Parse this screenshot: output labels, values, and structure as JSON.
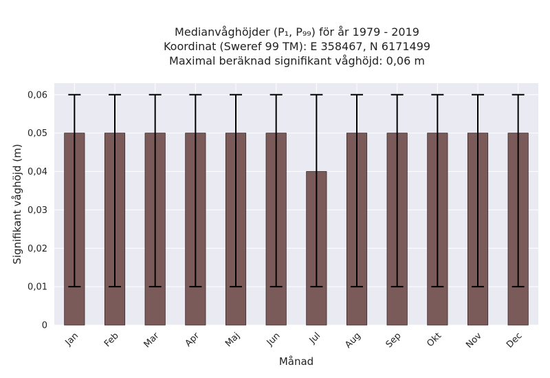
{
  "chart_data": {
    "type": "bar",
    "title_lines": [
      "Medianvåghöjder (P₁, P₉₉) för år 1979 - 2019",
      "Koordinat (Sweref 99 TM): E 358467, N 6171499",
      "Maximal beräknad signifikant våghöjd: 0,06 m"
    ],
    "xlabel": "Månad",
    "ylabel": "Signifikant våghöjd (m)",
    "categories": [
      "Jan",
      "Feb",
      "Mar",
      "Apr",
      "Maj",
      "Jun",
      "Jul",
      "Aug",
      "Sep",
      "Okt",
      "Nov",
      "Dec"
    ],
    "values": [
      0.05,
      0.05,
      0.05,
      0.05,
      0.05,
      0.05,
      0.04,
      0.05,
      0.05,
      0.05,
      0.05,
      0.05
    ],
    "err_low": [
      0.01,
      0.01,
      0.01,
      0.01,
      0.01,
      0.01,
      0.01,
      0.01,
      0.01,
      0.01,
      0.01,
      0.01
    ],
    "err_high": [
      0.06,
      0.06,
      0.06,
      0.06,
      0.06,
      0.06,
      0.06,
      0.06,
      0.06,
      0.06,
      0.06,
      0.06
    ],
    "ylim": [
      0,
      0.063
    ],
    "yticks": [
      0,
      0.01,
      0.02,
      0.03,
      0.04,
      0.05,
      0.06
    ],
    "ytick_labels": [
      "0",
      "0,01",
      "0,02",
      "0,03",
      "0,04",
      "0,05",
      "0,06"
    ],
    "grid": true,
    "bar_color": "#7b5a5a",
    "plot_background": "#eaeaf2"
  }
}
